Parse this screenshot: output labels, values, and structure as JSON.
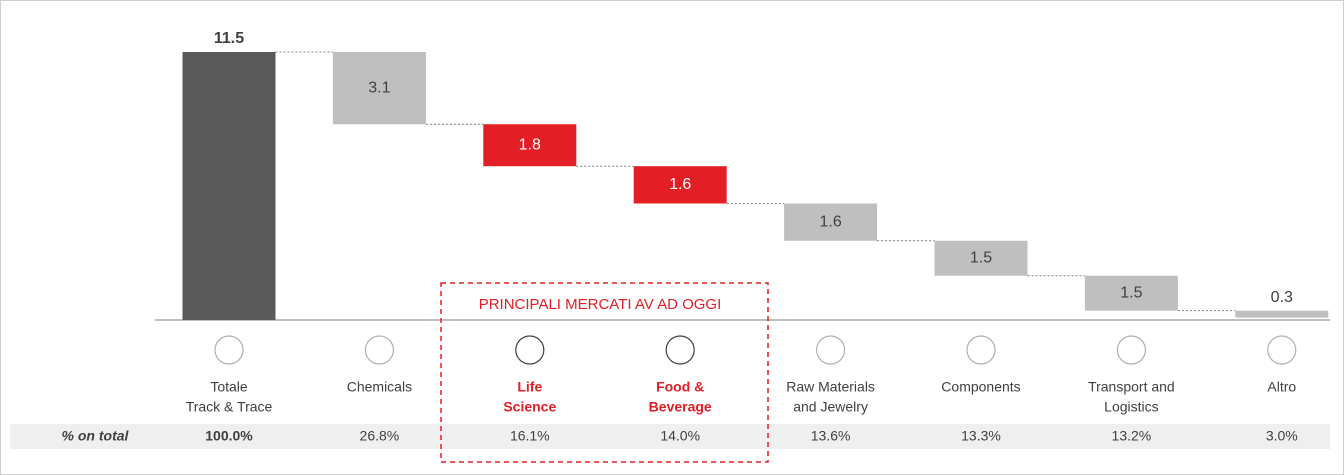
{
  "chart_data": {
    "type": "waterfall",
    "categories": [
      [
        "Totale",
        "Track & Trace"
      ],
      [
        "Chemicals"
      ],
      [
        "Life",
        "Science"
      ],
      [
        "Food &",
        "Beverage"
      ],
      [
        "Raw Materials",
        "and Jewelry"
      ],
      [
        "Components"
      ],
      [
        "Transport and",
        "Logistics"
      ],
      [
        "Altro"
      ]
    ],
    "values": [
      11.5,
      3.1,
      1.8,
      1.6,
      1.6,
      1.5,
      1.5,
      0.3
    ],
    "colors": [
      "#595959",
      "#bfbfbf",
      "#e31e24",
      "#e31e24",
      "#bfbfbf",
      "#bfbfbf",
      "#bfbfbf",
      "#bfbfbf"
    ],
    "label_colors": [
      "#404040",
      "#404040",
      "#e31e24",
      "#e31e24",
      "#404040",
      "#404040",
      "#404040",
      "#404040"
    ],
    "annotation": "PRINCIPALI MERCATI AV AD OGGI",
    "percent_row": {
      "label": "% on total",
      "values": [
        "100.0%",
        "26.8%",
        "16.1%",
        "14.0%",
        "13.6%",
        "13.3%",
        "13.2%",
        "3.0%"
      ]
    }
  }
}
